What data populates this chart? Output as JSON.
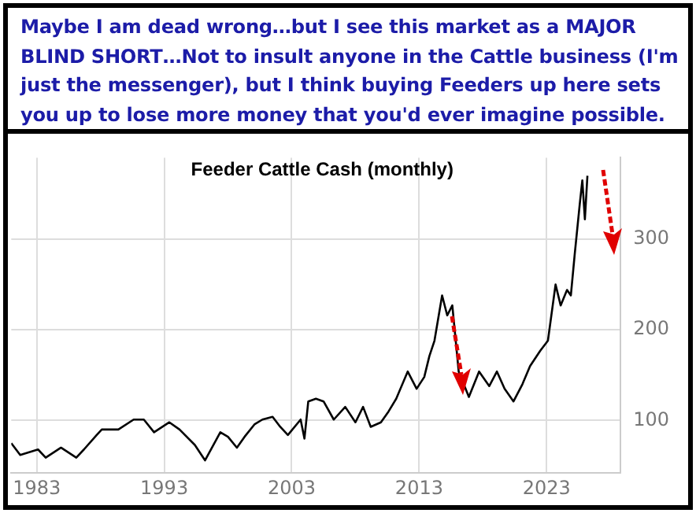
{
  "chart_data": {
    "type": "line",
    "title": "Feeder Cattle Cash (monthly)",
    "annotations": [
      "Maybe I am dead wrong…but I see this market as a MAJOR BLIND SHORT…Not to insult anyone in the Cattle business (I'm just the messenger), but I think buying Feeders up here sets you up to lose more money that you'd ever imagine possible."
    ],
    "series": [
      {
        "color": "#000000",
        "x": [
          1981.0,
          1981.7,
          1983.1,
          1983.7,
          1984.9,
          1986.1,
          1986.7,
          1987.7,
          1988.1,
          1989.4,
          1990.6,
          1991.4,
          1992.2,
          1993.4,
          1994.2,
          1995.4,
          1996.2,
          1997.4,
          1998.0,
          1998.7,
          1999.3,
          2000.1,
          2000.7,
          2001.5,
          2002.1,
          2002.7,
          2003.7,
          2004.0,
          2004.3,
          2004.9,
          2005.5,
          2006.3,
          2007.2,
          2008.0,
          2008.6,
          2009.2,
          2010.0,
          2010.6,
          2011.2,
          2012.1,
          2012.8,
          2013.4,
          2013.8,
          2014.2,
          2014.8,
          2015.2,
          2015.6,
          2016.1,
          2016.9,
          2017.7,
          2018.5,
          2019.1,
          2019.7,
          2020.4,
          2021.1,
          2021.7,
          2022.5,
          2023.1,
          2023.7,
          2024.1,
          2024.6,
          2024.9,
          2025.2,
          2025.6,
          2025.8,
          2026.0,
          2026.2
        ],
        "values": [
          75,
          62,
          68,
          59,
          70,
          59,
          68,
          84,
          90,
          90,
          101,
          101,
          87,
          98,
          90,
          73,
          56,
          87,
          82,
          70,
          82,
          96,
          101,
          104,
          93,
          84,
          101,
          80,
          121,
          124,
          121,
          101,
          115,
          98,
          115,
          93,
          98,
          110,
          124,
          154,
          135,
          148,
          171,
          188,
          238,
          216,
          227,
          154,
          126,
          154,
          138,
          154,
          135,
          121,
          140,
          160,
          177,
          188,
          250,
          227,
          244,
          238,
          283,
          339,
          365,
          322,
          370
        ]
      }
    ],
    "xlim": [
      1981,
      2028.8
    ],
    "xticks": [
      1983,
      1993,
      2003,
      2013,
      2023
    ],
    "ylim": [
      42,
      390
    ],
    "yticks": [
      100,
      200,
      300
    ],
    "grid": true,
    "line_style": "solid"
  }
}
